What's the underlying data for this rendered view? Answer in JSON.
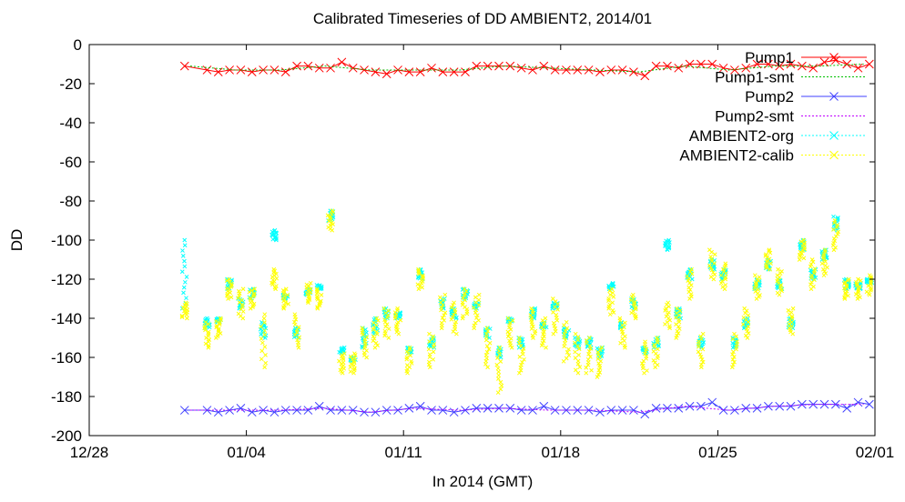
{
  "chart_data": {
    "type": "scatter",
    "title": "Calibrated Timeseries of DD AMBIENT2, 2014/01",
    "xlabel": "In 2014 (GMT)",
    "ylabel": "DD",
    "xlim": [
      "2013-12-28",
      "2014-02-01"
    ],
    "ylim": [
      -200,
      0
    ],
    "x_ticks": [
      "12/28",
      "01/04",
      "01/11",
      "01/18",
      "01/25",
      "02/01"
    ],
    "y_ticks": [
      "0",
      "-20",
      "-40",
      "-60",
      "-80",
      "-100",
      "-120",
      "-140",
      "-160",
      "-180",
      "-200"
    ],
    "grid": false,
    "legend_position": "top-right",
    "series": [
      {
        "name": "Pump1",
        "color": "#ff0000",
        "marker": "x",
        "line": true,
        "x": [
          "2014-01-01",
          "2014-01-02",
          "2014-01-02",
          "2014-01-03",
          "2014-01-03",
          "2014-01-04",
          "2014-01-04",
          "2014-01-05",
          "2014-01-05",
          "2014-01-06",
          "2014-01-06",
          "2014-01-07",
          "2014-01-07",
          "2014-01-08",
          "2014-01-08",
          "2014-01-09",
          "2014-01-09",
          "2014-01-10",
          "2014-01-10",
          "2014-01-11",
          "2014-01-11",
          "2014-01-12",
          "2014-01-12",
          "2014-01-13",
          "2014-01-13",
          "2014-01-14",
          "2014-01-14",
          "2014-01-15",
          "2014-01-15",
          "2014-01-16",
          "2014-01-16",
          "2014-01-17",
          "2014-01-17",
          "2014-01-18",
          "2014-01-18",
          "2014-01-19",
          "2014-01-19",
          "2014-01-20",
          "2014-01-20",
          "2014-01-21",
          "2014-01-21",
          "2014-01-22",
          "2014-01-22",
          "2014-01-23",
          "2014-01-23",
          "2014-01-24",
          "2014-01-24",
          "2014-01-25",
          "2014-01-25",
          "2014-01-26",
          "2014-01-26",
          "2014-01-27",
          "2014-01-27",
          "2014-01-28",
          "2014-01-28",
          "2014-01-29",
          "2014-01-29",
          "2014-01-30",
          "2014-01-30",
          "2014-01-31",
          "2014-01-31"
        ],
        "y": [
          -11,
          -13,
          -14,
          -13,
          -13,
          -14,
          -13,
          -13,
          -14,
          -11,
          -11,
          -12,
          -12,
          -9,
          -12,
          -13,
          -14,
          -15,
          -13,
          -14,
          -14,
          -12,
          -14,
          -14,
          -14,
          -11,
          -11,
          -11,
          -11,
          -12,
          -13,
          -11,
          -13,
          -13,
          -13,
          -13,
          -14,
          -13,
          -13,
          -14,
          -16,
          -11,
          -11,
          -12,
          -10,
          -10,
          -10,
          -12,
          -13,
          -12,
          -10,
          -10,
          -11,
          -10,
          -11,
          -12,
          -9,
          -8,
          -10,
          -12,
          -10
        ]
      },
      {
        "name": "Pump1-smt",
        "color": "#00c000",
        "marker": "",
        "line": true,
        "x": [
          "2014-01-01",
          "2014-01-03",
          "2014-01-05",
          "2014-01-07",
          "2014-01-09",
          "2014-01-11",
          "2014-01-13",
          "2014-01-15",
          "2014-01-17",
          "2014-01-19",
          "2014-01-21",
          "2014-01-23",
          "2014-01-25",
          "2014-01-27",
          "2014-01-29",
          "2014-01-31"
        ],
        "y": [
          -11,
          -13,
          -13,
          -11,
          -13,
          -13,
          -13,
          -11,
          -12,
          -13,
          -14,
          -11,
          -13,
          -11,
          -11,
          -10
        ]
      },
      {
        "name": "Pump2",
        "color": "#4040ff",
        "marker": "x",
        "line": true,
        "x": [
          "2014-01-01",
          "2014-01-02",
          "2014-01-02",
          "2014-01-03",
          "2014-01-03",
          "2014-01-04",
          "2014-01-04",
          "2014-01-05",
          "2014-01-05",
          "2014-01-06",
          "2014-01-06",
          "2014-01-07",
          "2014-01-07",
          "2014-01-08",
          "2014-01-08",
          "2014-01-09",
          "2014-01-09",
          "2014-01-10",
          "2014-01-10",
          "2014-01-11",
          "2014-01-11",
          "2014-01-12",
          "2014-01-12",
          "2014-01-13",
          "2014-01-13",
          "2014-01-14",
          "2014-01-14",
          "2014-01-15",
          "2014-01-15",
          "2014-01-16",
          "2014-01-16",
          "2014-01-17",
          "2014-01-17",
          "2014-01-18",
          "2014-01-18",
          "2014-01-19",
          "2014-01-19",
          "2014-01-20",
          "2014-01-20",
          "2014-01-21",
          "2014-01-21",
          "2014-01-22",
          "2014-01-22",
          "2014-01-23",
          "2014-01-23",
          "2014-01-24",
          "2014-01-24",
          "2014-01-25",
          "2014-01-25",
          "2014-01-26",
          "2014-01-26",
          "2014-01-27",
          "2014-01-27",
          "2014-01-28",
          "2014-01-28",
          "2014-01-29",
          "2014-01-29",
          "2014-01-30",
          "2014-01-30",
          "2014-01-31",
          "2014-01-31"
        ],
        "y": [
          -187,
          -187,
          -188,
          -187,
          -186,
          -188,
          -187,
          -188,
          -187,
          -187,
          -187,
          -185,
          -187,
          -187,
          -187,
          -188,
          -188,
          -187,
          -187,
          -186,
          -185,
          -187,
          -187,
          -188,
          -187,
          -186,
          -186,
          -186,
          -186,
          -187,
          -187,
          -185,
          -187,
          -187,
          -187,
          -187,
          -188,
          -187,
          -187,
          -187,
          -189,
          -186,
          -186,
          -186,
          -185,
          -185,
          -183,
          -187,
          -187,
          -186,
          -186,
          -185,
          -185,
          -185,
          -184,
          -184,
          -184,
          -184,
          -186,
          -183,
          -184
        ]
      },
      {
        "name": "Pump2-smt",
        "color": "#c000ff",
        "marker": "",
        "line": true,
        "x": [
          "2014-01-01",
          "2014-01-03",
          "2014-01-05",
          "2014-01-07",
          "2014-01-09",
          "2014-01-11",
          "2014-01-13",
          "2014-01-15",
          "2014-01-17",
          "2014-01-19",
          "2014-01-21",
          "2014-01-23",
          "2014-01-25",
          "2014-01-27",
          "2014-01-29",
          "2014-01-31"
        ],
        "y": [
          -187,
          -187,
          -187,
          -186,
          -188,
          -186,
          -187,
          -186,
          -187,
          -187,
          -188,
          -185,
          -187,
          -185,
          -184,
          -184
        ]
      },
      {
        "name": "AMBIENT2-org",
        "color": "#00ffff",
        "marker": "x",
        "line": false,
        "x": [
          "2014-01-01",
          "2014-01-02",
          "2014-01-02",
          "2014-01-03",
          "2014-01-03",
          "2014-01-04",
          "2014-01-04",
          "2014-01-05",
          "2014-01-05",
          "2014-01-06",
          "2014-01-06",
          "2014-01-07",
          "2014-01-07",
          "2014-01-08",
          "2014-01-08",
          "2014-01-09",
          "2014-01-09",
          "2014-01-10",
          "2014-01-10",
          "2014-01-11",
          "2014-01-11",
          "2014-01-12",
          "2014-01-12",
          "2014-01-13",
          "2014-01-13",
          "2014-01-14",
          "2014-01-14",
          "2014-01-15",
          "2014-01-15",
          "2014-01-16",
          "2014-01-16",
          "2014-01-17",
          "2014-01-17",
          "2014-01-18",
          "2014-01-18",
          "2014-01-19",
          "2014-01-19",
          "2014-01-20",
          "2014-01-20",
          "2014-01-21",
          "2014-01-21",
          "2014-01-22",
          "2014-01-22",
          "2014-01-23",
          "2014-01-23",
          "2014-01-24",
          "2014-01-24",
          "2014-01-25",
          "2014-01-25",
          "2014-01-26",
          "2014-01-26",
          "2014-01-27",
          "2014-01-27",
          "2014-01-28",
          "2014-01-28",
          "2014-01-29",
          "2014-01-29",
          "2014-01-30",
          "2014-01-30",
          "2014-01-31",
          "2014-01-31"
        ],
        "y_min": [
          -135,
          -145,
          -142,
          -120,
          -130,
          -125,
          -142,
          -95,
          -128,
          -145,
          -125,
          -123,
          -85,
          -155,
          -160,
          -145,
          -140,
          -135,
          -137,
          -155,
          -115,
          -150,
          -130,
          -135,
          -125,
          -132,
          -145,
          -155,
          -140,
          -150,
          -135,
          -142,
          -132,
          -145,
          -150,
          -150,
          -155,
          -122,
          -142,
          -130,
          -155,
          -150,
          -100,
          -135,
          -115,
          -150,
          -110,
          -115,
          -150,
          -140,
          -120,
          -110,
          -120,
          -140,
          -100,
          -115,
          -105,
          -88,
          -120,
          -122,
          -120
        ],
        "y_max": [
          -100,
          -140,
          -140,
          -125,
          -135,
          -130,
          -150,
          -100,
          -130,
          -150,
          -128,
          -125,
          -90,
          -158,
          -162,
          -155,
          -148,
          -140,
          -140,
          -158,
          -120,
          -155,
          -135,
          -140,
          -130,
          -135,
          -150,
          -160,
          -142,
          -155,
          -140,
          -145,
          -135,
          -150,
          -155,
          -155,
          -160,
          -125,
          -145,
          -135,
          -158,
          -155,
          -105,
          -140,
          -120,
          -155,
          -115,
          -120,
          -155,
          -145,
          -125,
          -115,
          -125,
          -145,
          -105,
          -120,
          -110,
          -95,
          -125,
          -125,
          -122
        ]
      },
      {
        "name": "AMBIENT2-calib",
        "color": "#ffff00",
        "marker": "x",
        "line": false,
        "x": [
          "2014-01-01",
          "2014-01-02",
          "2014-01-02",
          "2014-01-03",
          "2014-01-03",
          "2014-01-04",
          "2014-01-04",
          "2014-01-05",
          "2014-01-05",
          "2014-01-06",
          "2014-01-06",
          "2014-01-07",
          "2014-01-07",
          "2014-01-08",
          "2014-01-08",
          "2014-01-09",
          "2014-01-09",
          "2014-01-10",
          "2014-01-10",
          "2014-01-11",
          "2014-01-11",
          "2014-01-12",
          "2014-01-12",
          "2014-01-13",
          "2014-01-13",
          "2014-01-14",
          "2014-01-14",
          "2014-01-15",
          "2014-01-15",
          "2014-01-16",
          "2014-01-16",
          "2014-01-17",
          "2014-01-17",
          "2014-01-18",
          "2014-01-18",
          "2014-01-19",
          "2014-01-19",
          "2014-01-20",
          "2014-01-20",
          "2014-01-21",
          "2014-01-21",
          "2014-01-22",
          "2014-01-22",
          "2014-01-23",
          "2014-01-23",
          "2014-01-24",
          "2014-01-24",
          "2014-01-25",
          "2014-01-25",
          "2014-01-26",
          "2014-01-26",
          "2014-01-27",
          "2014-01-27",
          "2014-01-28",
          "2014-01-28",
          "2014-01-29",
          "2014-01-29",
          "2014-01-30",
          "2014-01-30",
          "2014-01-31",
          "2014-01-31"
        ],
        "y_min": [
          -132,
          -142,
          -140,
          -120,
          -125,
          -125,
          -138,
          -115,
          -125,
          -138,
          -122,
          -125,
          -85,
          -158,
          -158,
          -145,
          -140,
          -135,
          -135,
          -155,
          -115,
          -148,
          -128,
          -132,
          -125,
          -128,
          -145,
          -155,
          -140,
          -150,
          -135,
          -140,
          -130,
          -142,
          -148,
          -150,
          -155,
          -125,
          -140,
          -128,
          -152,
          -150,
          -132,
          -135,
          -115,
          -148,
          -105,
          -112,
          -148,
          -135,
          -118,
          -105,
          -115,
          -135,
          -100,
          -110,
          -105,
          -90,
          -120,
          -120,
          -118
        ],
        "y_max": [
          -140,
          -155,
          -150,
          -130,
          -140,
          -135,
          -165,
          -125,
          -135,
          -155,
          -132,
          -135,
          -95,
          -168,
          -168,
          -160,
          -155,
          -150,
          -148,
          -168,
          -125,
          -165,
          -145,
          -148,
          -140,
          -145,
          -165,
          -178,
          -155,
          -168,
          -150,
          -155,
          -148,
          -162,
          -168,
          -168,
          -170,
          -138,
          -155,
          -140,
          -168,
          -165,
          -145,
          -150,
          -130,
          -165,
          -120,
          -125,
          -165,
          -150,
          -130,
          -115,
          -128,
          -148,
          -110,
          -125,
          -118,
          -105,
          -130,
          -130,
          -128
        ]
      }
    ]
  }
}
